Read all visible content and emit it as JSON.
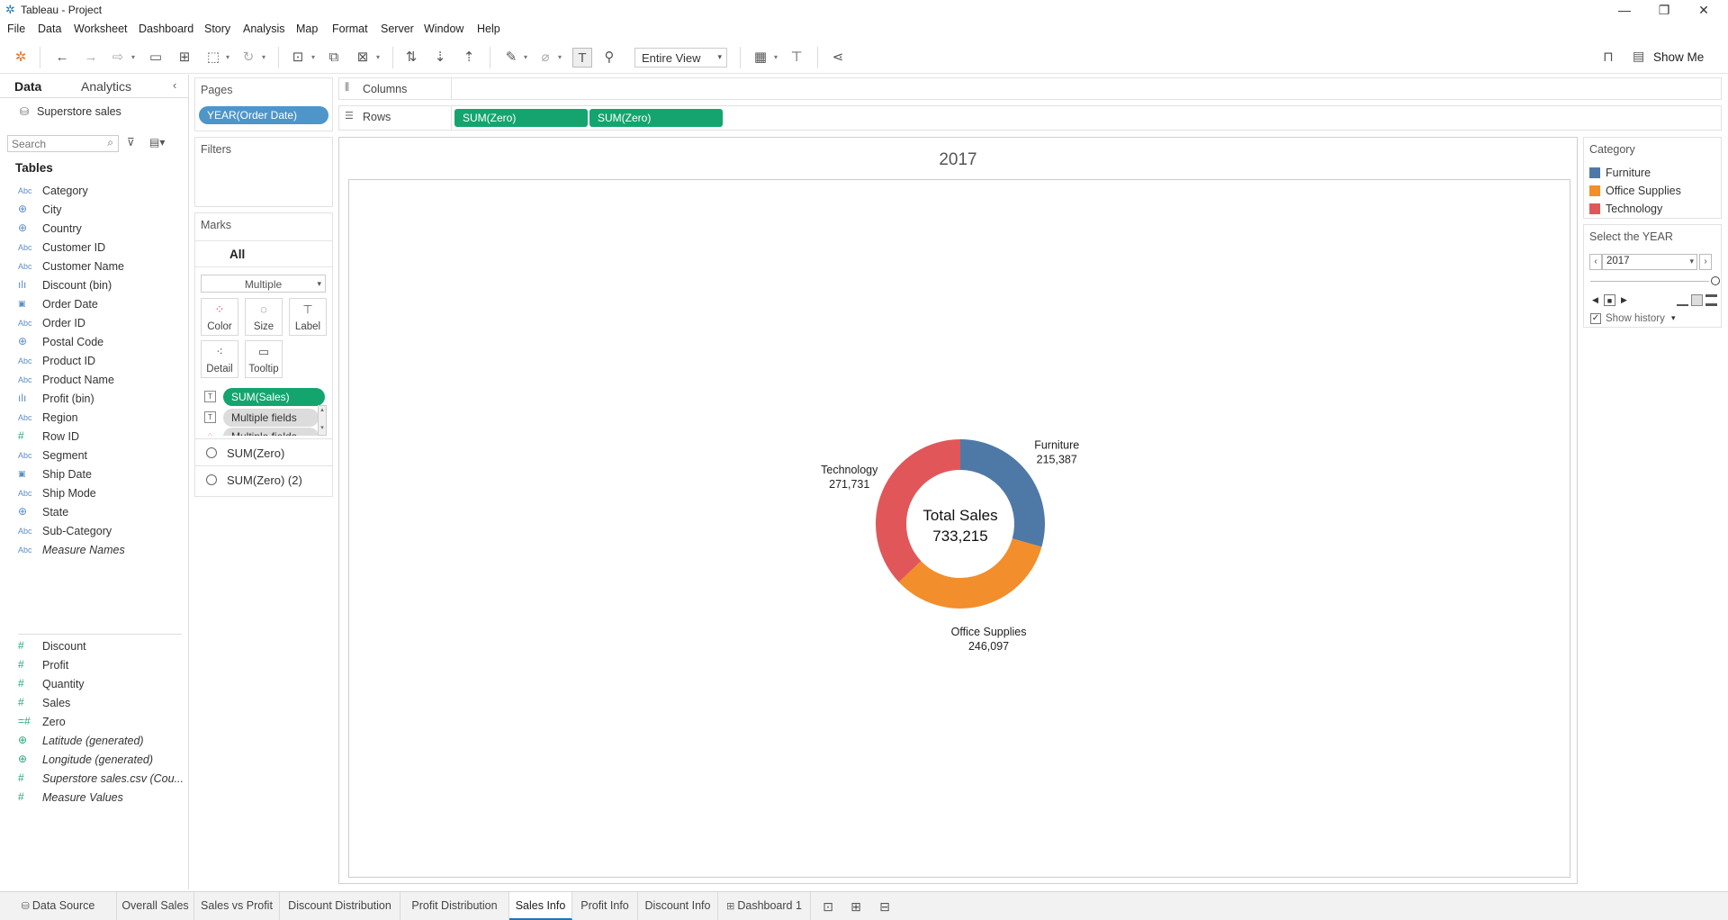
{
  "window": {
    "title": "Tableau - Project",
    "controls": [
      "—",
      "❐",
      "✕"
    ]
  },
  "menu": [
    "File",
    "Data",
    "Worksheet",
    "Dashboard",
    "Story",
    "Analysis",
    "Map",
    "Format",
    "Server",
    "Window",
    "Help"
  ],
  "toolbar": {
    "fit": "Entire View",
    "show_me": "Show Me"
  },
  "data_pane": {
    "tabs": [
      "Data",
      "Analytics"
    ],
    "datasource": "Superstore sales",
    "search_placeholder": "Search",
    "tables_heading": "Tables",
    "dimensions": [
      {
        "icon": "Abc",
        "name": "Category"
      },
      {
        "icon": "⊕",
        "name": "City"
      },
      {
        "icon": "⊕",
        "name": "Country"
      },
      {
        "icon": "Abc",
        "name": "Customer ID"
      },
      {
        "icon": "Abc",
        "name": "Customer Name"
      },
      {
        "icon": "ılı",
        "name": "Discount (bin)"
      },
      {
        "icon": "▣",
        "name": "Order Date"
      },
      {
        "icon": "Abc",
        "name": "Order ID"
      },
      {
        "icon": "⊕",
        "name": "Postal Code"
      },
      {
        "icon": "Abc",
        "name": "Product ID"
      },
      {
        "icon": "Abc",
        "name": "Product Name"
      },
      {
        "icon": "ılı",
        "name": "Profit (bin)"
      },
      {
        "icon": "Abc",
        "name": "Region"
      },
      {
        "icon": "#",
        "name": "Row ID"
      },
      {
        "icon": "Abc",
        "name": "Segment"
      },
      {
        "icon": "▣",
        "name": "Ship Date"
      },
      {
        "icon": "Abc",
        "name": "Ship Mode"
      },
      {
        "icon": "⊕",
        "name": "State"
      },
      {
        "icon": "Abc",
        "name": "Sub-Category"
      },
      {
        "icon": "Abc",
        "name": "Measure Names",
        "italic": true
      }
    ],
    "measures": [
      {
        "icon": "#",
        "name": "Discount"
      },
      {
        "icon": "#",
        "name": "Profit"
      },
      {
        "icon": "#",
        "name": "Quantity"
      },
      {
        "icon": "#",
        "name": "Sales"
      },
      {
        "icon": "=#",
        "name": "Zero"
      },
      {
        "icon": "⊕",
        "name": "Latitude (generated)",
        "italic": true
      },
      {
        "icon": "⊕",
        "name": "Longitude (generated)",
        "italic": true
      },
      {
        "icon": "#",
        "name": "Superstore sales.csv (Cou...",
        "italic": true
      },
      {
        "icon": "#",
        "name": "Measure Values",
        "italic": true
      }
    ]
  },
  "pages": {
    "title": "Pages",
    "pill": "YEAR(Order Date)"
  },
  "filters": {
    "title": "Filters"
  },
  "marks": {
    "title": "Marks",
    "all": "All",
    "type": "Multiple",
    "buttons": [
      "Color",
      "Size",
      "Label",
      "Detail",
      "Tooltip"
    ],
    "fields": [
      "SUM(Sales)",
      "Multiple fields",
      "Multiple fields"
    ],
    "tabs": [
      "SUM(Zero)",
      "SUM(Zero) (2)"
    ]
  },
  "columns": {
    "label": "Columns"
  },
  "rows": {
    "label": "Rows",
    "pills": [
      "SUM(Zero)",
      "SUM(Zero)"
    ]
  },
  "view": {
    "title": "2017"
  },
  "legend": {
    "title": "Category",
    "items": [
      {
        "name": "Furniture",
        "color": "#4e79a7"
      },
      {
        "name": "Office Supplies",
        "color": "#f28e2b"
      },
      {
        "name": "Technology",
        "color": "#e15759"
      }
    ]
  },
  "page_control": {
    "title": "Select the YEAR",
    "value": "2017",
    "show_history": "Show history"
  },
  "chart_data": {
    "type": "pie",
    "categories": [
      "Furniture",
      "Office Supplies",
      "Technology"
    ],
    "values": [
      215387,
      246097,
      271731
    ],
    "value_labels": [
      "215,387",
      "246,097",
      "271,731"
    ],
    "colors": [
      "#4e79a7",
      "#f28e2b",
      "#e15759"
    ],
    "center_label": "Total Sales",
    "center_value": "733,215",
    "title": "2017"
  },
  "sheet_tabs": [
    "Data Source",
    "Overall Sales",
    "Sales vs Profit",
    "Discount Distribution",
    "Profit Distribution",
    "Sales Info",
    "Profit Info",
    "Discount Info",
    "Dashboard 1"
  ],
  "active_tab": "Sales Info"
}
